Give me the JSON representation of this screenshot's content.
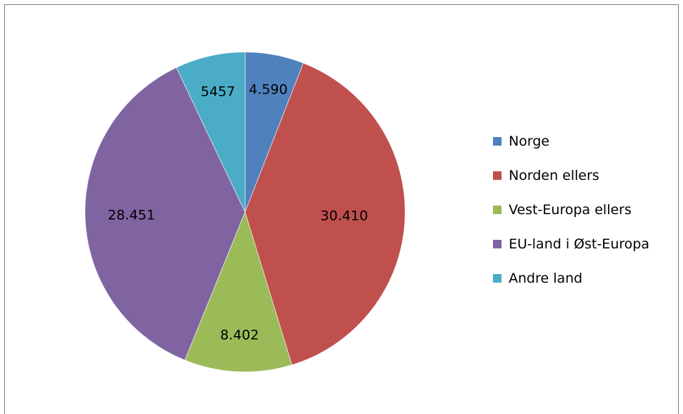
{
  "chart_data": {
    "type": "pie",
    "title": "",
    "categories": [
      "Norge",
      "Norden ellers",
      "Vest-Europa ellers",
      "EU-land i Øst-Europa",
      "Andre land"
    ],
    "values": [
      4590,
      30410,
      8402,
      28451,
      5457
    ],
    "value_labels": [
      "4.590",
      "30.410",
      "8.402",
      "28.451",
      "5457"
    ],
    "colors": [
      "#4f81bd",
      "#c0504d",
      "#9bbb59",
      "#8064a2",
      "#4bacc6"
    ],
    "legend_position": "right"
  },
  "legend": {
    "items": [
      "Norge",
      "Norden ellers",
      "Vest-Europa ellers",
      "EU-land i Øst-Europa",
      "Andre land"
    ]
  }
}
